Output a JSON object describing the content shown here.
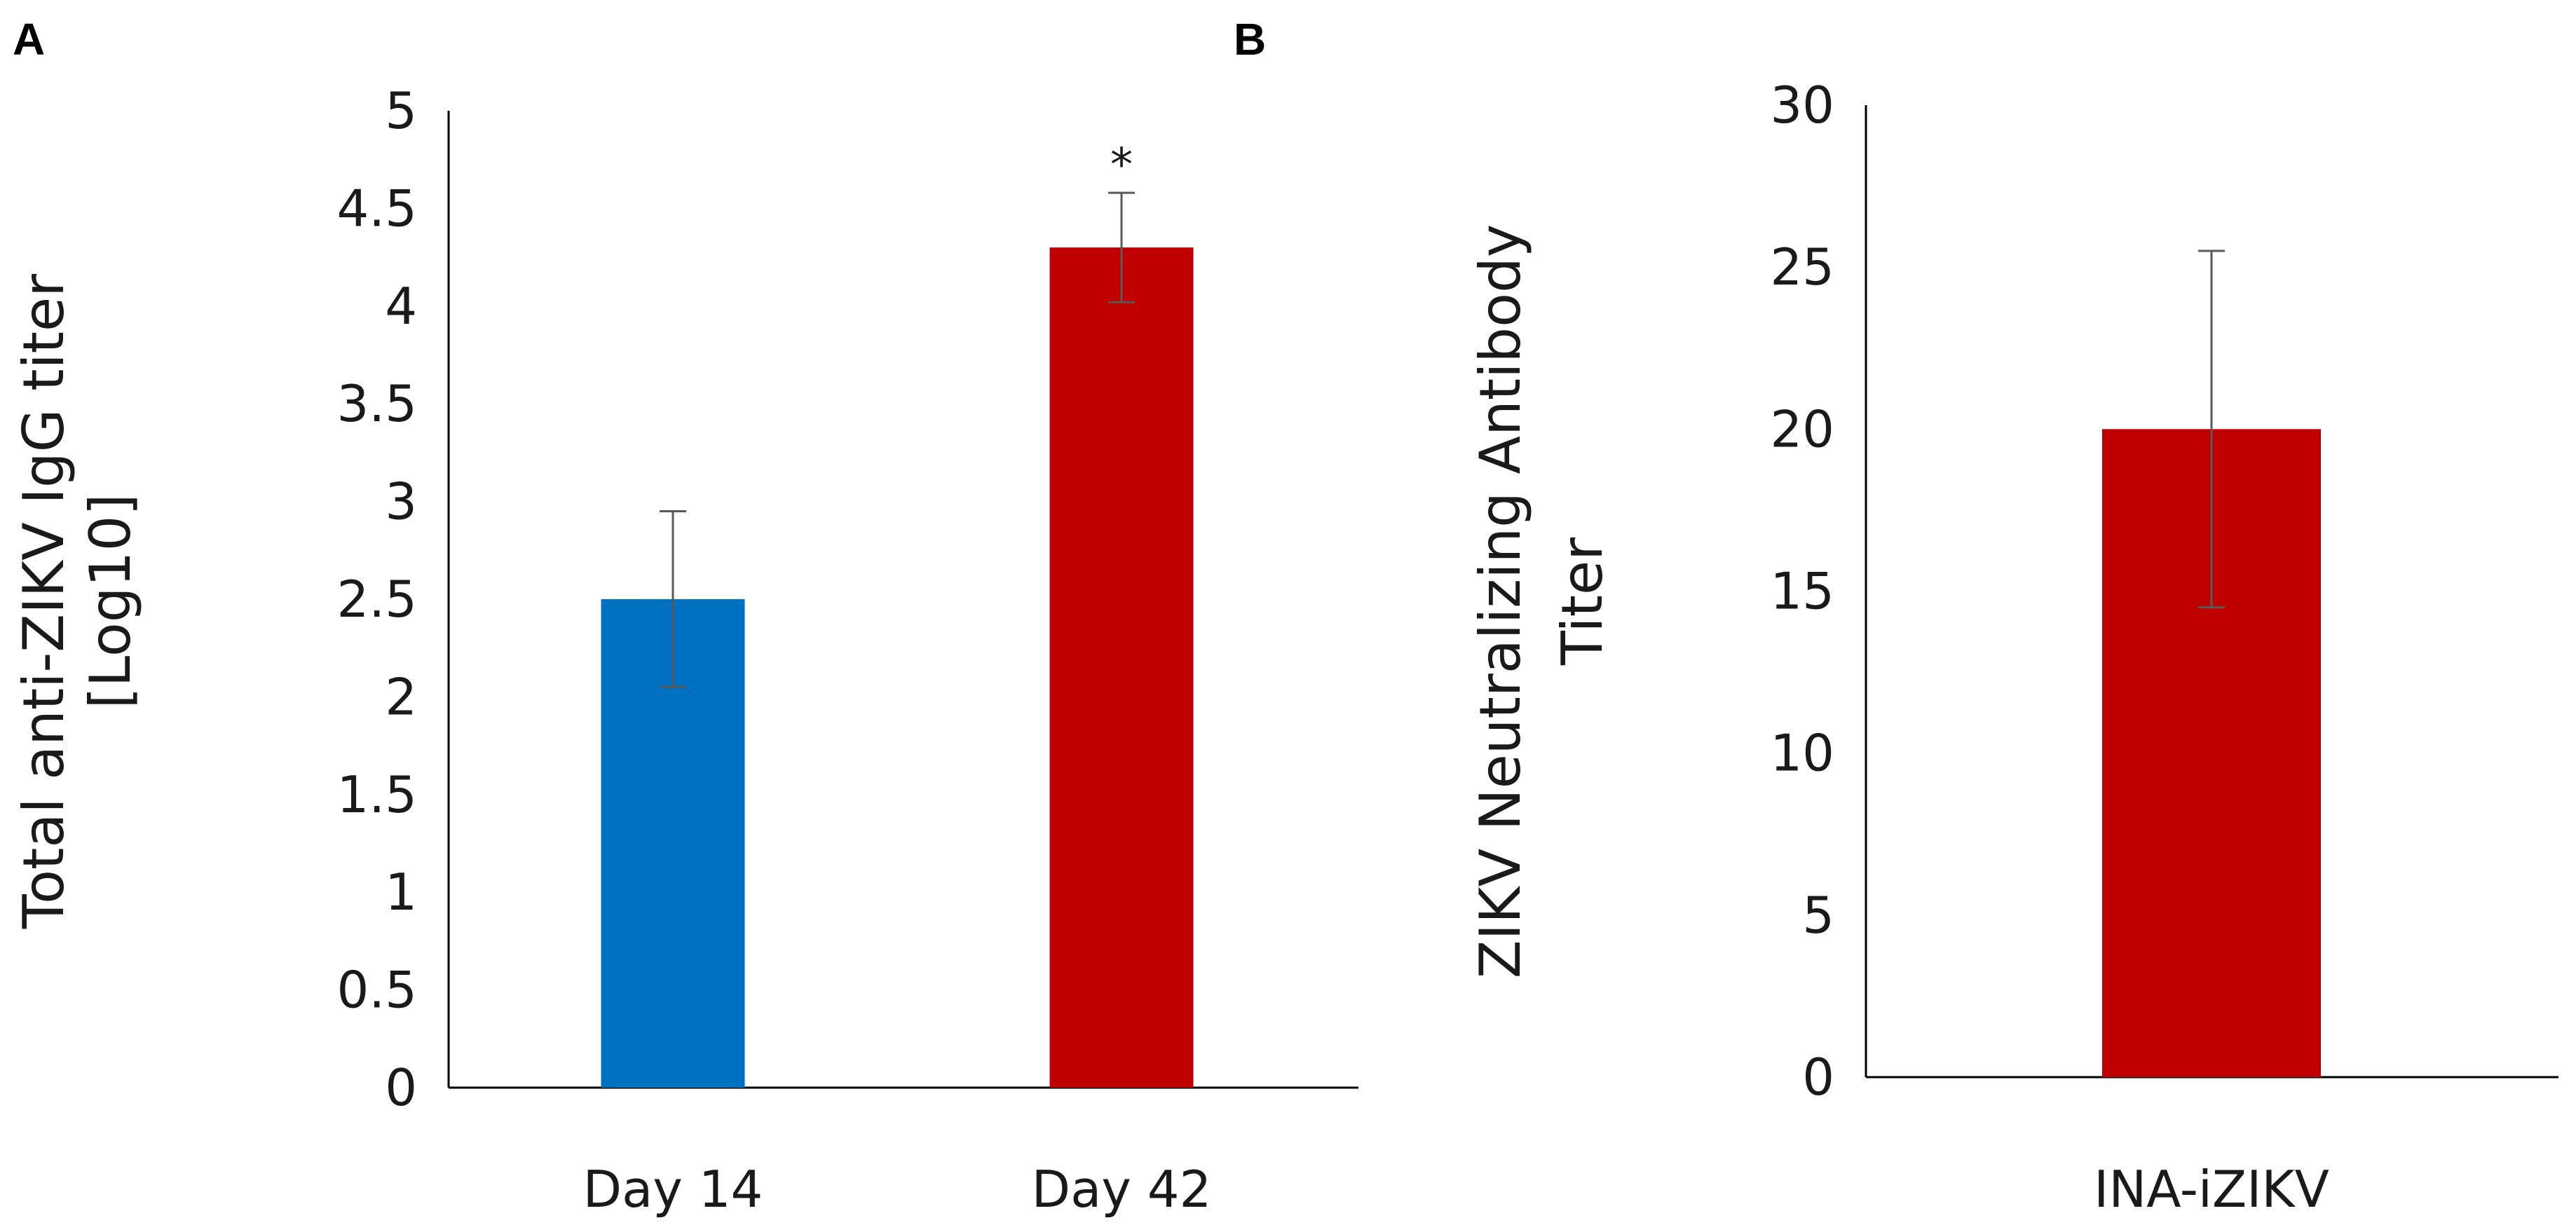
{
  "chart_data": [
    {
      "type": "bar",
      "panel_label": "A",
      "categories": [
        "Day 14",
        "Day 42"
      ],
      "values": [
        2.5,
        4.3
      ],
      "error_bars": [
        0.45,
        0.28
      ],
      "bar_colors": [
        "#0070C0",
        "#C00000"
      ],
      "annotations": [
        "",
        "*"
      ],
      "ylabel_lines": [
        "Total anti-ZIKV  IgG titer",
        "[Log10]"
      ],
      "xlabel": "",
      "ylim": [
        0,
        5
      ],
      "yticks": [
        0,
        0.5,
        1,
        1.5,
        2,
        2.5,
        3,
        3.5,
        4,
        4.5,
        5
      ],
      "ytick_labels": [
        "0",
        "0.5",
        "1",
        "1.5",
        "2",
        "2.5",
        "3",
        "3.5",
        "4",
        "4.5",
        "5"
      ],
      "grid": false
    },
    {
      "type": "bar",
      "panel_label": "B",
      "categories": [
        "INA-iZIKV"
      ],
      "values": [
        20
      ],
      "error_bars": [
        5.5
      ],
      "bar_colors": [
        "#C00000"
      ],
      "annotations": [
        ""
      ],
      "ylabel_lines": [
        "ZIKV Neutralizing Antibody",
        "Titer"
      ],
      "xlabel": "",
      "ylim": [
        0,
        30
      ],
      "yticks": [
        0,
        5,
        10,
        15,
        20,
        25,
        30
      ],
      "ytick_labels": [
        "0",
        "5",
        "10",
        "15",
        "20",
        "25",
        "30"
      ],
      "grid": false
    }
  ]
}
